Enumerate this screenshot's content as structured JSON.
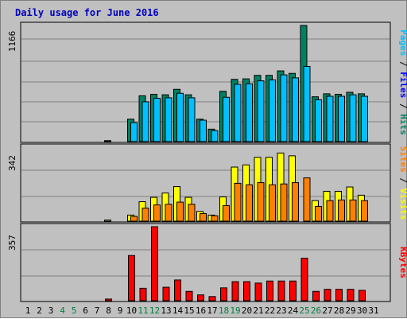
{
  "chart_data": {
    "type": "bar",
    "title": "Daily usage for June 2016",
    "colors": {
      "hits": "#008060",
      "files": "#00C0FF",
      "sites": "#FF8000",
      "visits": "#FFFF00",
      "kbytes": "#FF0000",
      "title": "#0000C0",
      "weekend_label": "#008040",
      "weekday_label": "#000000",
      "plot_bg": "#C0C0C0",
      "gridline": "#808080"
    },
    "categories": [
      "1",
      "2",
      "3",
      "4",
      "5",
      "6",
      "7",
      "8",
      "9",
      "10",
      "11",
      "12",
      "13",
      "14",
      "15",
      "16",
      "17",
      "18",
      "19",
      "20",
      "21",
      "22",
      "23",
      "24",
      "25",
      "26",
      "27",
      "28",
      "29",
      "30",
      "31"
    ],
    "weekend_days": [
      "4",
      "5",
      "11",
      "12",
      "18",
      "19",
      "25",
      "26"
    ],
    "panels": [
      {
        "name": "pages-files-hits",
        "ytick_label": "1166",
        "ymax": 1166,
        "side_label_parts": [
          {
            "text": "Pages",
            "color": "#00C0FF"
          },
          {
            "text": " / ",
            "color": "#000000"
          },
          {
            "text": "Files",
            "color": "#0000FF"
          },
          {
            "text": " / ",
            "color": "#000000"
          },
          {
            "text": "Hits",
            "color": "#008060"
          }
        ],
        "series": [
          {
            "name": "Hits",
            "color": "#008060",
            "values": [
              0,
              0,
              0,
              0,
              0,
              0,
              0,
              10,
              0,
              225,
              460,
              475,
              470,
              525,
              470,
              225,
              125,
              505,
              625,
              630,
              665,
              665,
              710,
              685,
              1166,
              450,
              480,
              475,
              495,
              480,
              0
            ]
          },
          {
            "name": "Files",
            "color": "#00C0FF",
            "values": [
              0,
              0,
              0,
              0,
              0,
              0,
              0,
              0,
              0,
              190,
              400,
              435,
              440,
              485,
              440,
              215,
              110,
              445,
              575,
              580,
              610,
              620,
              670,
              640,
              755,
              420,
              455,
              455,
              470,
              455,
              0
            ]
          }
        ]
      },
      {
        "name": "sites-visits",
        "ytick_label": "342",
        "ymax": 342,
        "side_label_parts": [
          {
            "text": "Sites",
            "color": "#FF8000"
          },
          {
            "text": " / ",
            "color": "#000000"
          },
          {
            "text": "Visits",
            "color": "#FFFF00"
          }
        ],
        "series": [
          {
            "name": "Visits",
            "color": "#FFFF00",
            "values": [
              0,
              0,
              0,
              0,
              0,
              0,
              0,
              5,
              0,
              28,
              90,
              110,
              130,
              160,
              110,
              45,
              28,
              112,
              250,
              260,
              295,
              295,
              315,
              302,
              0,
              95,
              138,
              138,
              158,
              120,
              0
            ]
          },
          {
            "name": "Sites",
            "color": "#FF8000",
            "values": [
              0,
              0,
              0,
              0,
              0,
              0,
              0,
              0,
              0,
              22,
              60,
              75,
              78,
              88,
              78,
              35,
              25,
              72,
              175,
              168,
              178,
              168,
              172,
              178,
              200,
              68,
              95,
              98,
              98,
              95,
              0
            ]
          }
        ]
      },
      {
        "name": "kbytes",
        "ytick_label": "357",
        "ymax": 357,
        "side_label_parts": [
          {
            "text": "KBytes",
            "color": "#FF0000"
          }
        ],
        "series": [
          {
            "name": "KBytes",
            "color": "#FF0000",
            "values": [
              0,
              0,
              0,
              0,
              0,
              0,
              0,
              8,
              0,
              218,
              60,
              357,
              65,
              100,
              45,
              28,
              20,
              62,
              92,
              92,
              85,
              95,
              95,
              95,
              205,
              45,
              55,
              55,
              55,
              50,
              0
            ]
          }
        ]
      }
    ]
  }
}
